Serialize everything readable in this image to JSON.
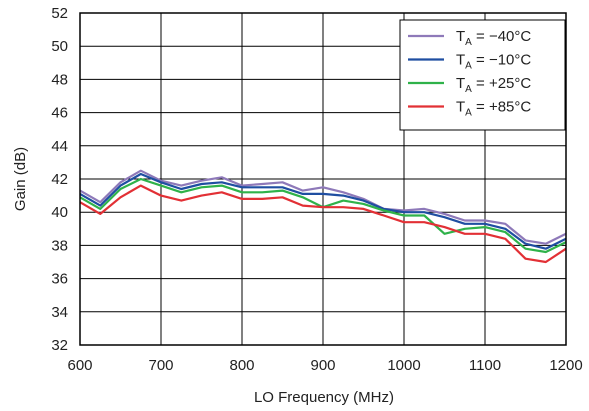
{
  "chart_data": {
    "type": "line",
    "title": "",
    "xlabel": "LO Frequency (MHz)",
    "ylabel": "Gain (dB)",
    "xlim": [
      600,
      1200
    ],
    "ylim": [
      32,
      52
    ],
    "xticks": [
      600,
      700,
      800,
      900,
      1000,
      1100,
      1200
    ],
    "yticks": [
      32,
      34,
      36,
      38,
      40,
      42,
      44,
      46,
      48,
      50,
      52
    ],
    "grid": true,
    "legend_position": "top-right",
    "x": [
      600,
      625,
      650,
      675,
      700,
      725,
      750,
      775,
      800,
      825,
      850,
      875,
      900,
      925,
      950,
      975,
      1000,
      1025,
      1050,
      1075,
      1100,
      1125,
      1150,
      1175,
      1200
    ],
    "series": [
      {
        "name": "T_A = −40°C",
        "label_main": "T",
        "label_sub": "A",
        "label_rest": " = −40°C",
        "color": "#8e79b9",
        "values": [
          41.3,
          40.6,
          41.8,
          42.5,
          41.9,
          41.6,
          41.9,
          42.1,
          41.6,
          41.7,
          41.8,
          41.3,
          41.5,
          41.2,
          40.8,
          40.2,
          40.1,
          40.2,
          39.9,
          39.5,
          39.5,
          39.3,
          38.3,
          38.1,
          38.7
        ]
      },
      {
        "name": "T_A = −10°C",
        "label_main": "T",
        "label_sub": "A",
        "label_rest": " = −10°C",
        "color": "#1f4ea1",
        "values": [
          41.1,
          40.4,
          41.6,
          42.3,
          41.8,
          41.4,
          41.7,
          41.8,
          41.5,
          41.5,
          41.5,
          41.1,
          41.1,
          41.0,
          40.7,
          40.2,
          40.0,
          40.0,
          39.7,
          39.3,
          39.3,
          39.0,
          38.1,
          37.8,
          38.4
        ]
      },
      {
        "name": "T_A = +25°C",
        "label_main": "T",
        "label_sub": "A",
        "label_rest": " = +25°C",
        "color": "#2fb24a",
        "values": [
          40.9,
          40.2,
          41.4,
          42.0,
          41.6,
          41.2,
          41.5,
          41.6,
          41.2,
          41.2,
          41.3,
          40.9,
          40.3,
          40.7,
          40.5,
          40.1,
          39.8,
          39.8,
          38.7,
          39.0,
          39.1,
          38.8,
          37.8,
          37.6,
          38.2
        ]
      },
      {
        "name": "T_A = +85°C",
        "label_main": "T",
        "label_sub": "A",
        "label_rest": " = +85°C",
        "color": "#e23035",
        "values": [
          40.6,
          39.9,
          40.9,
          41.6,
          41.0,
          40.7,
          41.0,
          41.2,
          40.8,
          40.8,
          40.9,
          40.4,
          40.3,
          40.3,
          40.2,
          39.8,
          39.4,
          39.4,
          39.1,
          38.7,
          38.7,
          38.4,
          37.2,
          37.0,
          37.8
        ]
      }
    ]
  }
}
